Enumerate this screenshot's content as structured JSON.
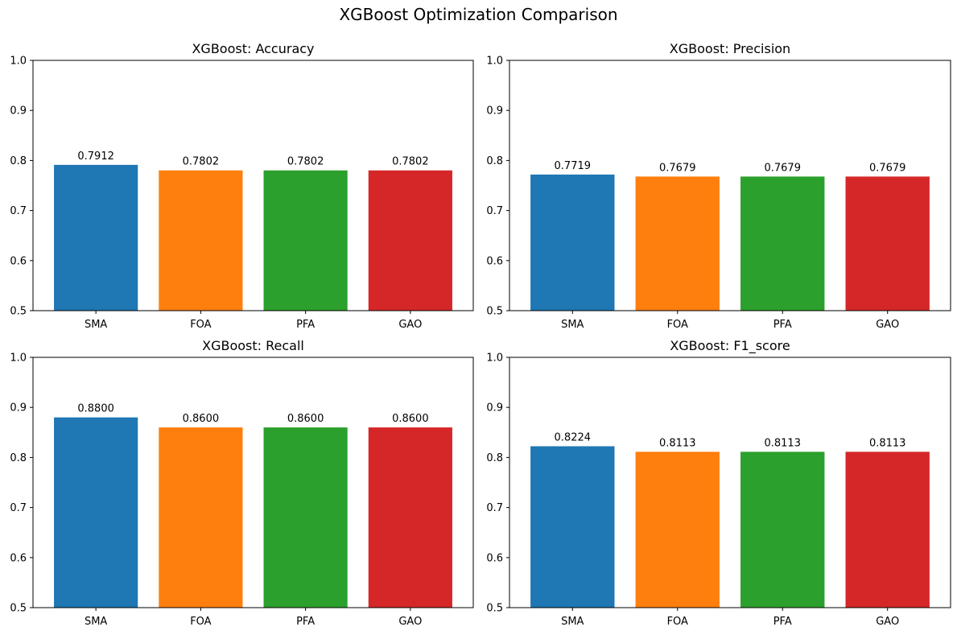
{
  "title": "XGBoost Optimization Comparison",
  "chart_data": [
    {
      "type": "bar",
      "title": "XGBoost: Accuracy",
      "categories": [
        "SMA",
        "FOA",
        "PFA",
        "GAO"
      ],
      "values": [
        0.7912,
        0.7802,
        0.7802,
        0.7802
      ],
      "value_labels": [
        "0.7912",
        "0.7802",
        "0.7802",
        "0.7802"
      ],
      "colors": [
        "#1f77b4",
        "#ff7f0e",
        "#2ca02c",
        "#d62728"
      ],
      "ylim": [
        0.5,
        1.0
      ],
      "yticks": [
        0.5,
        0.6,
        0.7,
        0.8,
        0.9,
        1.0
      ],
      "ytick_labels": [
        "0.5",
        "0.6",
        "0.7",
        "0.8",
        "0.9",
        "1.0"
      ],
      "xlabel": "",
      "ylabel": "",
      "grid": false
    },
    {
      "type": "bar",
      "title": "XGBoost: Precision",
      "categories": [
        "SMA",
        "FOA",
        "PFA",
        "GAO"
      ],
      "values": [
        0.7719,
        0.7679,
        0.7679,
        0.7679
      ],
      "value_labels": [
        "0.7719",
        "0.7679",
        "0.7679",
        "0.7679"
      ],
      "colors": [
        "#1f77b4",
        "#ff7f0e",
        "#2ca02c",
        "#d62728"
      ],
      "ylim": [
        0.5,
        1.0
      ],
      "yticks": [
        0.5,
        0.6,
        0.7,
        0.8,
        0.9,
        1.0
      ],
      "ytick_labels": [
        "0.5",
        "0.6",
        "0.7",
        "0.8",
        "0.9",
        "1.0"
      ],
      "xlabel": "",
      "ylabel": "",
      "grid": false
    },
    {
      "type": "bar",
      "title": "XGBoost: Recall",
      "categories": [
        "SMA",
        "FOA",
        "PFA",
        "GAO"
      ],
      "values": [
        0.88,
        0.86,
        0.86,
        0.86
      ],
      "value_labels": [
        "0.8800",
        "0.8600",
        "0.8600",
        "0.8600"
      ],
      "colors": [
        "#1f77b4",
        "#ff7f0e",
        "#2ca02c",
        "#d62728"
      ],
      "ylim": [
        0.5,
        1.0
      ],
      "yticks": [
        0.5,
        0.6,
        0.7,
        0.8,
        0.9,
        1.0
      ],
      "ytick_labels": [
        "0.5",
        "0.6",
        "0.7",
        "0.8",
        "0.9",
        "1.0"
      ],
      "xlabel": "",
      "ylabel": "",
      "grid": false
    },
    {
      "type": "bar",
      "title": "XGBoost: F1_score",
      "categories": [
        "SMA",
        "FOA",
        "PFA",
        "GAO"
      ],
      "values": [
        0.8224,
        0.8113,
        0.8113,
        0.8113
      ],
      "value_labels": [
        "0.8224",
        "0.8113",
        "0.8113",
        "0.8113"
      ],
      "colors": [
        "#1f77b4",
        "#ff7f0e",
        "#2ca02c",
        "#d62728"
      ],
      "ylim": [
        0.5,
        1.0
      ],
      "yticks": [
        0.5,
        0.6,
        0.7,
        0.8,
        0.9,
        1.0
      ],
      "ytick_labels": [
        "0.5",
        "0.6",
        "0.7",
        "0.8",
        "0.9",
        "1.0"
      ],
      "xlabel": "",
      "ylabel": "",
      "grid": false
    }
  ]
}
